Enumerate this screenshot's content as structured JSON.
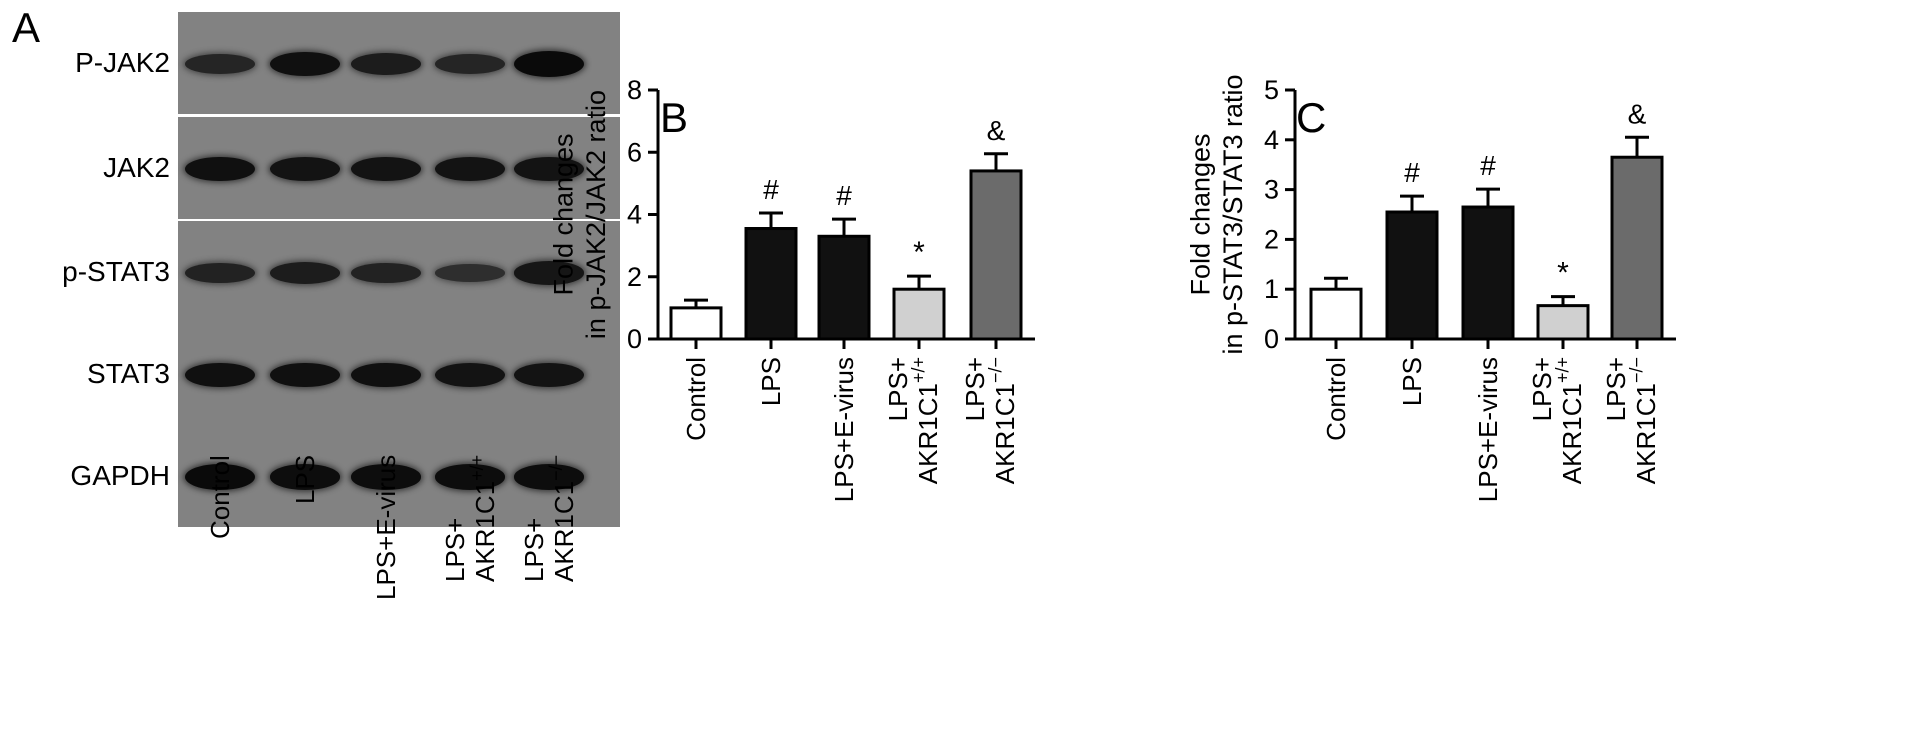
{
  "panels": {
    "a": "A",
    "b": "B",
    "c": "C"
  },
  "blot": {
    "rows": [
      {
        "label": "P-JAK2",
        "intensity": [
          0.55,
          0.9,
          0.7,
          0.55,
          1.0
        ]
      },
      {
        "label": "JAK2",
        "intensity": [
          0.9,
          0.85,
          0.85,
          0.85,
          0.85
        ]
      },
      {
        "label": "p-STAT3",
        "intensity": [
          0.6,
          0.7,
          0.6,
          0.4,
          0.8
        ]
      },
      {
        "label": "STAT3",
        "intensity": [
          0.9,
          0.9,
          0.9,
          0.85,
          0.85
        ]
      },
      {
        "label": "GAPDH",
        "intensity": [
          1.0,
          0.95,
          0.95,
          0.95,
          0.95
        ]
      }
    ],
    "lanes": [
      {
        "line1": "Control",
        "line2": "",
        "sup": ""
      },
      {
        "line1": "LPS",
        "line2": "",
        "sup": ""
      },
      {
        "line1": "LPS+E-virus",
        "line2": "",
        "sup": ""
      },
      {
        "line1": "LPS+",
        "line2": "AKR1C1",
        "sup": "+/+"
      },
      {
        "line1": "LPS+",
        "line2": "AKR1C1",
        "sup": "−/−"
      }
    ]
  },
  "chart_data": [
    {
      "type": "bar",
      "ylabel": [
        "Fold changes",
        "in p-JAK2/JAK2 ratio"
      ],
      "ylim": [
        0,
        8
      ],
      "yticks": [
        0,
        2,
        4,
        6,
        8
      ],
      "categories": [
        {
          "line1": "Control",
          "line2": "",
          "sup": ""
        },
        {
          "line1": "LPS",
          "line2": "",
          "sup": ""
        },
        {
          "line1": "LPS+E-virus",
          "line2": "",
          "sup": ""
        },
        {
          "line1": "LPS+",
          "line2": "AKR1C1",
          "sup": "+/+"
        },
        {
          "line1": "LPS+",
          "line2": "AKR1C1",
          "sup": "−/−"
        }
      ],
      "values": [
        1.0,
        3.55,
        3.3,
        1.6,
        5.4
      ],
      "errors": [
        0.25,
        0.5,
        0.55,
        0.42,
        0.55
      ],
      "annotations": [
        "",
        "#",
        "#",
        "*",
        "&"
      ],
      "colors": [
        "#ffffff",
        "#111111",
        "#111111",
        "#d0d0d0",
        "#6b6b6b"
      ]
    },
    {
      "type": "bar",
      "ylabel": [
        "Fold changes",
        "in p-STAT3/STAT3 ratio"
      ],
      "ylim": [
        0,
        5
      ],
      "yticks": [
        0,
        1,
        2,
        3,
        4,
        5
      ],
      "categories": [
        {
          "line1": "Control",
          "line2": "",
          "sup": ""
        },
        {
          "line1": "LPS",
          "line2": "",
          "sup": ""
        },
        {
          "line1": "LPS+E-virus",
          "line2": "",
          "sup": ""
        },
        {
          "line1": "LPS+",
          "line2": "AKR1C1",
          "sup": "+/+"
        },
        {
          "line1": "LPS+",
          "line2": "AKR1C1",
          "sup": "−/−"
        }
      ],
      "values": [
        1.0,
        2.55,
        2.65,
        0.67,
        3.65
      ],
      "errors": [
        0.22,
        0.32,
        0.36,
        0.18,
        0.4
      ],
      "annotations": [
        "",
        "#",
        "#",
        "*",
        "&"
      ],
      "colors": [
        "#ffffff",
        "#111111",
        "#111111",
        "#d0d0d0",
        "#6b6b6b"
      ]
    }
  ]
}
